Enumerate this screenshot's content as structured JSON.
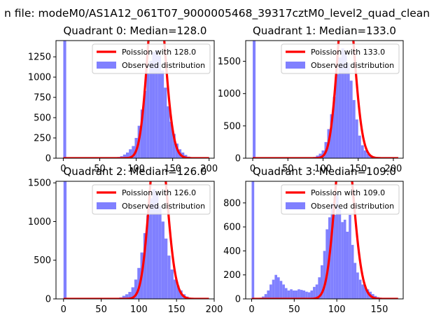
{
  "figure": {
    "suptitle": "n file: modeM0/AS1A12_061T07_9000005468_39317cztM0_level2_quad_clean"
  },
  "colors": {
    "hist": "#8080ff",
    "poisson": "#ff0000",
    "axes": "#000000"
  },
  "chart_data": [
    {
      "type": "bar",
      "title": "Quadrant 0: Median=128.0",
      "xlim": [
        -10,
        207
      ],
      "ylim": [
        0,
        1450
      ],
      "xticks": [
        0,
        50,
        100,
        150,
        200
      ],
      "xtick_labels": [
        "0",
        "50",
        "100",
        "150",
        "200"
      ],
      "yticks": [
        0,
        250,
        500,
        750,
        1000,
        1250
      ],
      "ytick_labels": [
        "0",
        "250",
        "500",
        "750",
        "1000",
        "1250"
      ],
      "legend": {
        "placement": "top-right",
        "entries": [
          "Poission with 128.0",
          "Observed distribution"
        ]
      },
      "series": [
        {
          "name": "Observed distribution",
          "kind": "histogram",
          "bin_edges": [
            0,
            4,
            66,
            70,
            74,
            78,
            82,
            86,
            90,
            94,
            98,
            102,
            106,
            110,
            114,
            118,
            122,
            126,
            130,
            134,
            138,
            142,
            146,
            150,
            154,
            158,
            162,
            166,
            170,
            174,
            178,
            182,
            186
          ],
          "counts": [
            1450,
            0,
            5,
            10,
            15,
            25,
            45,
            70,
            110,
            150,
            250,
            400,
            600,
            830,
            1040,
            1200,
            1310,
            1330,
            1270,
            1080,
            870,
            640,
            450,
            300,
            180,
            110,
            70,
            40,
            20,
            10,
            5,
            0
          ]
        },
        {
          "name": "Poission with 128.0",
          "kind": "poisson_curve",
          "mean": 128.0,
          "total": 16300,
          "bin_width": 4,
          "x_range": [
            0,
            200
          ]
        }
      ]
    },
    {
      "type": "bar",
      "title": "Quadrant 1: Median=133.0",
      "xlim": [
        -10,
        214
      ],
      "ylim": [
        0,
        1820
      ],
      "xticks": [
        0,
        50,
        100,
        150,
        200
      ],
      "xtick_labels": [
        "0",
        "50",
        "100",
        "150",
        "200"
      ],
      "yticks": [
        0,
        500,
        1000,
        1500
      ],
      "ytick_labels": [
        "0",
        "500",
        "1000",
        "1500"
      ],
      "legend": {
        "placement": "top-right",
        "entries": [
          "Poission with 133.0",
          "Observed distribution"
        ]
      },
      "series": [
        {
          "name": "Observed distribution",
          "kind": "histogram",
          "bin_edges": [
            0,
            4,
            86,
            90,
            94,
            98,
            102,
            106,
            110,
            114,
            118,
            122,
            126,
            130,
            134,
            138,
            142,
            146,
            150,
            154,
            158,
            162,
            166,
            170,
            174,
            178
          ],
          "counts": [
            1820,
            0,
            20,
            40,
            70,
            120,
            250,
            450,
            680,
            950,
            1300,
            1560,
            1700,
            1640,
            1470,
            1200,
            900,
            600,
            350,
            200,
            120,
            70,
            40,
            20,
            10
          ]
        },
        {
          "name": "Poission with 133.0",
          "kind": "poisson_curve",
          "mean": 133.0,
          "total": 19900,
          "bin_width": 4,
          "x_range": [
            0,
            207
          ]
        }
      ]
    },
    {
      "type": "bar",
      "title": "Quadrant 2: Median=126.0",
      "xlim": [
        -10,
        200
      ],
      "ylim": [
        0,
        1520
      ],
      "xticks": [
        0,
        50,
        100,
        150,
        200
      ],
      "xtick_labels": [
        "0",
        "50",
        "100",
        "150",
        "200"
      ],
      "yticks": [
        0,
        500,
        1000,
        1500
      ],
      "ytick_labels": [
        "0",
        "500",
        "1000",
        "1500"
      ],
      "legend": {
        "placement": "top-right",
        "entries": [
          "Poission with 126.0",
          "Observed distribution"
        ]
      },
      "series": [
        {
          "name": "Observed distribution",
          "kind": "histogram",
          "bin_edges": [
            0,
            4,
            70,
            74,
            78,
            82,
            86,
            90,
            94,
            98,
            102,
            106,
            110,
            114,
            118,
            122,
            126,
            130,
            134,
            138,
            142,
            146,
            150,
            154,
            158,
            162,
            166,
            170,
            174,
            178
          ],
          "counts": [
            1520,
            0,
            10,
            20,
            40,
            60,
            90,
            150,
            250,
            400,
            600,
            850,
            1080,
            1300,
            1420,
            1360,
            1200,
            1000,
            780,
            560,
            380,
            250,
            170,
            110,
            60,
            30,
            15,
            8,
            4
          ]
        },
        {
          "name": "Poission with 126.0",
          "kind": "poisson_curve",
          "mean": 126.0,
          "total": 16000,
          "bin_width": 4,
          "x_range": [
            0,
            193
          ]
        }
      ]
    },
    {
      "type": "bar",
      "title": "Quadrant 3: Median=109.0",
      "xlim": [
        -7,
        178
      ],
      "ylim": [
        0,
        980
      ],
      "xticks": [
        0,
        50,
        100,
        150
      ],
      "xtick_labels": [
        "0",
        "50",
        "100",
        "150"
      ],
      "yticks": [
        0,
        200,
        400,
        600,
        800
      ],
      "ytick_labels": [
        "0",
        "200",
        "400",
        "600",
        "800"
      ],
      "legend": {
        "placement": "top-right",
        "entries": [
          "Poission with 109.0",
          "Observed distribution"
        ]
      },
      "series": [
        {
          "name": "Observed distribution",
          "kind": "histogram",
          "bin_edges": [
            0,
            3,
            9,
            12,
            15,
            18,
            21,
            24,
            27,
            30,
            33,
            36,
            39,
            42,
            45,
            48,
            51,
            54,
            57,
            60,
            63,
            66,
            69,
            72,
            75,
            78,
            81,
            84,
            87,
            90,
            93,
            96,
            99,
            102,
            105,
            108,
            111,
            114,
            117,
            120,
            123,
            126,
            129,
            132,
            135,
            138,
            141,
            144,
            147,
            150,
            153,
            156,
            159
          ],
          "counts": [
            980,
            0,
            10,
            20,
            40,
            70,
            120,
            160,
            200,
            180,
            150,
            120,
            90,
            70,
            80,
            70,
            70,
            80,
            75,
            70,
            60,
            55,
            70,
            100,
            120,
            180,
            280,
            400,
            580,
            680,
            800,
            700,
            880,
            760,
            640,
            660,
            560,
            700,
            450,
            300,
            220,
            160,
            120,
            100,
            80,
            60,
            40,
            25,
            15,
            10,
            5,
            2
          ]
        },
        {
          "name": "Poission with 109.0",
          "kind": "poisson_curve",
          "mean": 109.0,
          "total": 9600,
          "bin_width": 4,
          "x_range": [
            0,
            172
          ]
        }
      ]
    }
  ]
}
